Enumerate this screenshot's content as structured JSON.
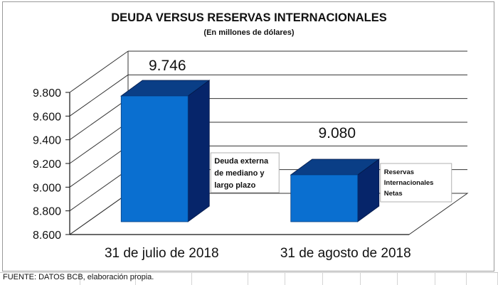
{
  "chart_data": {
    "type": "bar",
    "title": "DEUDA VERSUS RESERVAS INTERNACIONALES",
    "subtitle": "(En millones de dólares)",
    "categories": [
      "31 de julio de 2018",
      "31 de agosto de 2018"
    ],
    "values": [
      9746,
      9080
    ],
    "value_labels": [
      "9.746",
      "9.080"
    ],
    "bar_labels": [
      [
        "Deuda externa",
        "de mediano y",
        "largo plazo"
      ],
      [
        "Reservas",
        "Internacionales",
        "Netas"
      ]
    ],
    "ylim": [
      8600,
      9800
    ],
    "yticks": [
      8600,
      8800,
      9000,
      9200,
      9400,
      9600,
      9800
    ],
    "ytick_labels": [
      "8.600",
      "8.800",
      "9.000",
      "9.200",
      "9.400",
      "9.600",
      "9.800"
    ],
    "grid": true,
    "style": "3d-column",
    "colors": {
      "front": "#0a6fd0",
      "side": "#06256a",
      "top": "#0a3e86",
      "axis": "#111111",
      "grid": "#333333"
    }
  },
  "source": "FUENTE: DATOS BCB, elaboración propia."
}
